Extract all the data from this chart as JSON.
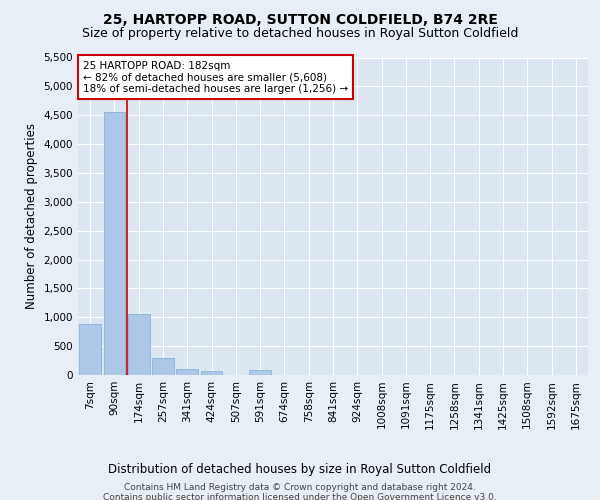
{
  "title": "25, HARTOPP ROAD, SUTTON COLDFIELD, B74 2RE",
  "subtitle": "Size of property relative to detached houses in Royal Sutton Coldfield",
  "xlabel": "Distribution of detached houses by size in Royal Sutton Coldfield",
  "ylabel": "Number of detached properties",
  "footer_line1": "Contains HM Land Registry data © Crown copyright and database right 2024.",
  "footer_line2": "Contains public sector information licensed under the Open Government Licence v3.0.",
  "bar_labels": [
    "7sqm",
    "90sqm",
    "174sqm",
    "257sqm",
    "341sqm",
    "424sqm",
    "507sqm",
    "591sqm",
    "674sqm",
    "758sqm",
    "841sqm",
    "924sqm",
    "1008sqm",
    "1091sqm",
    "1175sqm",
    "1258sqm",
    "1341sqm",
    "1425sqm",
    "1508sqm",
    "1592sqm",
    "1675sqm"
  ],
  "bar_values": [
    880,
    4560,
    1060,
    300,
    100,
    75,
    0,
    80,
    0,
    0,
    0,
    0,
    0,
    0,
    0,
    0,
    0,
    0,
    0,
    0,
    0
  ],
  "bar_color": "#aec6e8",
  "bar_edge_color": "#7aaed0",
  "vline_color": "#cc0000",
  "annotation_text": "25 HARTOPP ROAD: 182sqm\n← 82% of detached houses are smaller (5,608)\n18% of semi-detached houses are larger (1,256) →",
  "annotation_box_color": "#ffffff",
  "annotation_box_edge_color": "#cc0000",
  "ylim": [
    0,
    5500
  ],
  "yticks": [
    0,
    500,
    1000,
    1500,
    2000,
    2500,
    3000,
    3500,
    4000,
    4500,
    5000,
    5500
  ],
  "bg_color": "#e8eef5",
  "plot_bg_color": "#dce6f0",
  "title_fontsize": 10,
  "subtitle_fontsize": 9,
  "axis_label_fontsize": 8.5,
  "tick_fontsize": 7.5,
  "annotation_fontsize": 7.5,
  "footer_fontsize": 6.5
}
